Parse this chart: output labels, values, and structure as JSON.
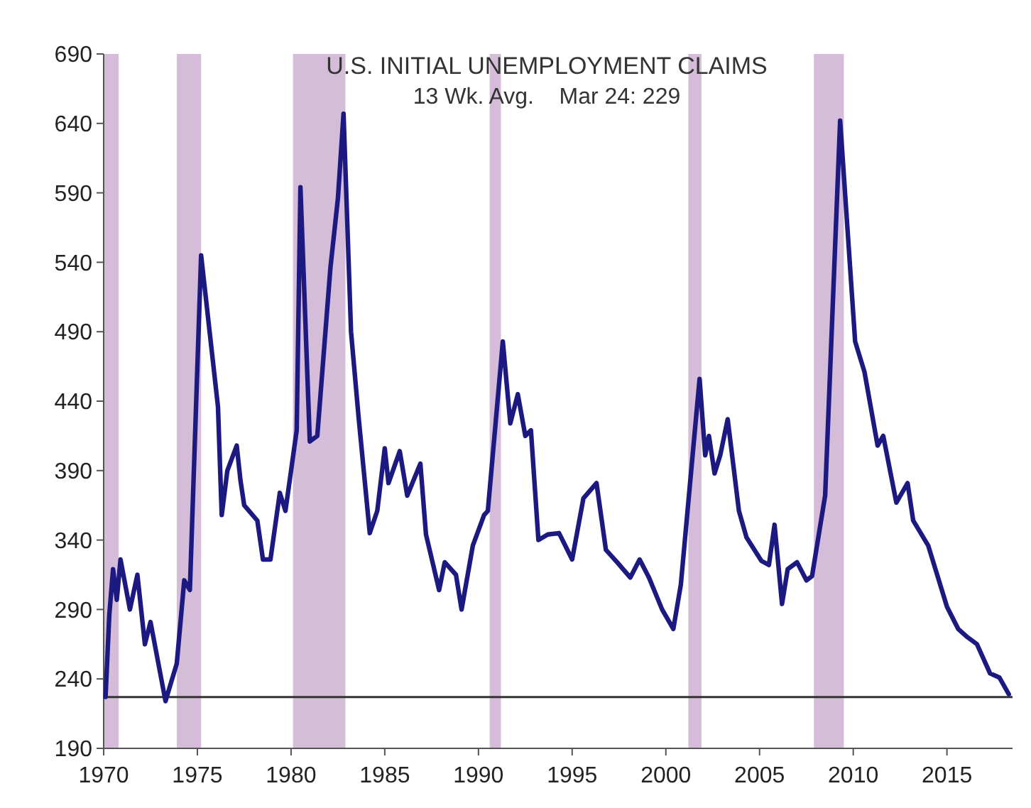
{
  "chart_data": {
    "type": "line",
    "title": "U.S. INITIAL UNEMPLOYMENT CLAIMS",
    "subtitle": "13 Wk. Avg.    Mar 24: 229",
    "xlim": [
      1970,
      2018.5
    ],
    "xticks": [
      1970,
      1975,
      1980,
      1985,
      1990,
      1995,
      2000,
      2005,
      2010,
      2015
    ],
    "ylim": [
      190,
      690
    ],
    "yticks": [
      190,
      240,
      290,
      340,
      390,
      440,
      490,
      540,
      590,
      640,
      690
    ],
    "grid": false,
    "marker": "none",
    "line_style": "solid",
    "series": [
      {
        "color": "#1c1a80",
        "x": [
          1970.1,
          1970.3,
          1970.5,
          1970.7,
          1970.9,
          1971.4,
          1971.8,
          1972.2,
          1972.5,
          1973.3,
          1973.9,
          1974.3,
          1974.6,
          1975.2,
          1976.1,
          1976.3,
          1976.6,
          1977.1,
          1977.3,
          1977.5,
          1978.2,
          1978.5,
          1978.9,
          1979.4,
          1979.7,
          1980.3,
          1980.5,
          1981.0,
          1981.4,
          1982.1,
          1982.5,
          1982.8,
          1983.2,
          1983.6,
          1984.2,
          1984.6,
          1985.0,
          1985.2,
          1985.8,
          1986.2,
          1986.9,
          1987.2,
          1987.9,
          1988.2,
          1988.8,
          1989.1,
          1989.7,
          1990.3,
          1990.5,
          1991.3,
          1991.7,
          1992.1,
          1992.5,
          1992.8,
          1993.2,
          1993.7,
          1994.3,
          1995.0,
          1995.6,
          1996.3,
          1996.8,
          1997.4,
          1998.1,
          1998.6,
          1999.1,
          1999.8,
          2000.4,
          2000.8,
          2001.4,
          2001.8,
          2002.1,
          2002.3,
          2002.6,
          2002.9,
          2003.3,
          2003.9,
          2004.3,
          2005.1,
          2005.5,
          2005.8,
          2006.2,
          2006.5,
          2007.0,
          2007.5,
          2007.8,
          2008.5,
          2009.3,
          2010.1,
          2010.6,
          2011.3,
          2011.6,
          2012.3,
          2012.9,
          2013.2,
          2014.0,
          2015.0,
          2015.6,
          2016.1,
          2016.6,
          2017.3,
          2017.8,
          2018.3
        ],
        "values": [
          227,
          286,
          319,
          297,
          326,
          290,
          315,
          265,
          281,
          224,
          251,
          311,
          304,
          545,
          436,
          358,
          390,
          408,
          383,
          365,
          354,
          326,
          326,
          374,
          361,
          419,
          594,
          411,
          415,
          536,
          586,
          647,
          490,
          429,
          345,
          361,
          406,
          381,
          404,
          372,
          395,
          344,
          304,
          324,
          315,
          290,
          336,
          358,
          361,
          483,
          424,
          445,
          415,
          419,
          340,
          344,
          345,
          326,
          370,
          381,
          333,
          324,
          313,
          326,
          313,
          290,
          276,
          308,
          397,
          456,
          401,
          415,
          388,
          401,
          427,
          361,
          342,
          325,
          322,
          351,
          294,
          319,
          324,
          311,
          314,
          372,
          642,
          483,
          461,
          408,
          415,
          367,
          381,
          354,
          336,
          292,
          276,
          270,
          265,
          244,
          241,
          229
        ]
      }
    ],
    "ref_lines": [
      {
        "axis": "y",
        "value": 227,
        "color": "#333333"
      }
    ],
    "bands": [
      {
        "axis": "x",
        "from": 1970.0,
        "to": 1970.8,
        "color": "#d5bcd8"
      },
      {
        "axis": "x",
        "from": 1973.9,
        "to": 1975.2,
        "color": "#d5bcd8"
      },
      {
        "axis": "x",
        "from": 1980.1,
        "to": 1982.9,
        "color": "#d5bcd8"
      },
      {
        "axis": "x",
        "from": 1990.6,
        "to": 1991.2,
        "color": "#d5bcd8"
      },
      {
        "axis": "x",
        "from": 2001.2,
        "to": 2001.9,
        "color": "#d5bcd8"
      },
      {
        "axis": "x",
        "from": 2007.9,
        "to": 2009.5,
        "color": "#d5bcd8"
      }
    ]
  }
}
